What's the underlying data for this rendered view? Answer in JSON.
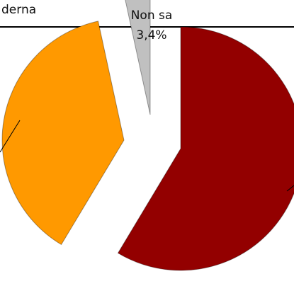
{
  "chart_data": {
    "type": "pie",
    "categories": [
      null,
      "derna",
      "Non sa"
    ],
    "values": [
      58.6,
      38,
      3.4
    ],
    "value_labels": [
      null,
      null,
      "3,4%"
    ],
    "colors": [
      "#930000",
      "#ff9900",
      "#c0c0c0"
    ]
  }
}
